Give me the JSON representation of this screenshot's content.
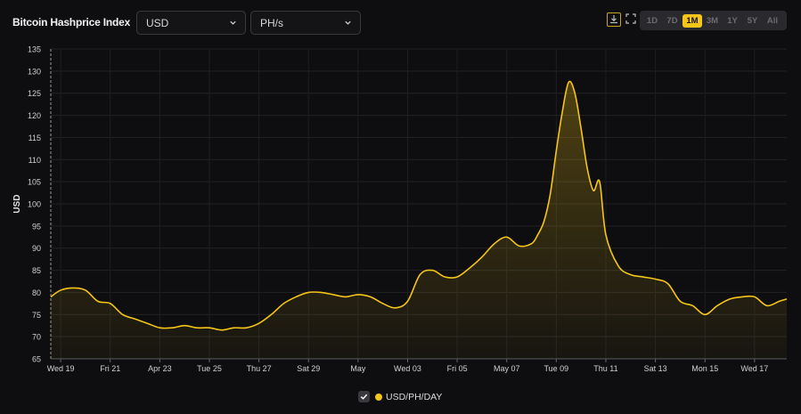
{
  "header": {
    "title": "Bitcoin Hashprice Index",
    "currency_select": "USD",
    "unit_select": "PH/s"
  },
  "icons": {
    "download": "download-icon",
    "fullscreen": "fullscreen-icon",
    "chevron": "chevron-down-icon",
    "check": "check-icon"
  },
  "range_buttons": [
    {
      "label": "1D",
      "active": false
    },
    {
      "label": "7D",
      "active": false
    },
    {
      "label": "1M",
      "active": true
    },
    {
      "label": "3M",
      "active": false
    },
    {
      "label": "1Y",
      "active": false
    },
    {
      "label": "5Y",
      "active": false
    },
    {
      "label": "All",
      "active": false
    }
  ],
  "legend": {
    "label": "USD/PH/DAY",
    "color": "#f5c518"
  },
  "chart_data": {
    "type": "area",
    "ylabel": "USD",
    "xlabel": "",
    "ylim": [
      65,
      135
    ],
    "y_ticks": [
      65,
      70,
      75,
      80,
      85,
      90,
      95,
      100,
      105,
      110,
      115,
      120,
      125,
      130,
      135
    ],
    "x_ticks": [
      "Wed 19",
      "Fri 21",
      "Apr 23",
      "Tue 25",
      "Thu 27",
      "Sat 29",
      "May",
      "Wed 03",
      "Fri 05",
      "May 07",
      "Tue 09",
      "Thu 11",
      "Sat 13",
      "Mon 15",
      "Wed 17"
    ],
    "x_tick_days": [
      0,
      2,
      4,
      6,
      8,
      10,
      12,
      14,
      16,
      18,
      20,
      22,
      24,
      26,
      28
    ],
    "x_range_days": [
      -0.4,
      29.3
    ],
    "grid": true,
    "legend_position": "bottom-center",
    "series": [
      {
        "name": "USD/PH/DAY",
        "color": "#f5c518",
        "x": [
          -0.4,
          0.0,
          0.5,
          1.0,
          1.5,
          2.0,
          2.5,
          3.0,
          3.5,
          4.0,
          4.5,
          5.0,
          5.5,
          6.0,
          6.5,
          7.0,
          7.5,
          8.0,
          8.5,
          9.0,
          9.5,
          10.0,
          10.5,
          11.0,
          11.5,
          12.0,
          12.5,
          13.0,
          13.5,
          14.0,
          14.5,
          15.0,
          15.5,
          16.0,
          16.5,
          17.0,
          17.5,
          18.0,
          18.5,
          19.0,
          19.25,
          19.5,
          19.75,
          20.0,
          20.25,
          20.5,
          20.75,
          21.0,
          21.25,
          21.5,
          21.75,
          22.0,
          22.5,
          23.0,
          23.5,
          24.0,
          24.5,
          25.0,
          25.5,
          26.0,
          26.5,
          27.0,
          27.5,
          28.0,
          28.5,
          29.0,
          29.3
        ],
        "y": [
          79.0,
          80.5,
          81.0,
          80.5,
          78.0,
          77.5,
          75.0,
          74.0,
          73.0,
          72.0,
          72.0,
          72.5,
          72.0,
          72.0,
          71.5,
          72.0,
          72.0,
          73.0,
          75.0,
          77.5,
          79.0,
          80.0,
          80.0,
          79.5,
          79.0,
          79.5,
          79.0,
          77.5,
          76.5,
          78.0,
          84.0,
          85.0,
          83.5,
          83.5,
          85.5,
          88.0,
          91.0,
          92.5,
          90.5,
          91.0,
          93.0,
          96.0,
          102.0,
          112.0,
          121.0,
          127.5,
          125.0,
          117.0,
          108.0,
          103.0,
          105.0,
          93.0,
          86.0,
          84.0,
          83.5,
          83.0,
          82.0,
          78.0,
          77.0,
          75.0,
          77.0,
          78.5,
          79.0,
          79.0,
          77.0,
          78.0,
          78.5
        ]
      }
    ]
  }
}
